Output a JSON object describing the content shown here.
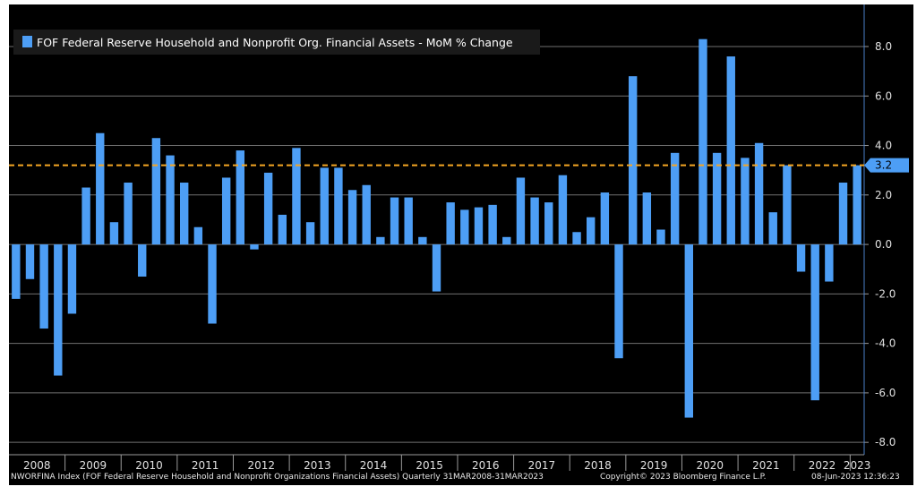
{
  "chart_data": {
    "type": "bar",
    "legend": {
      "label": "FOF Federal Reserve Household and Nonprofit Org. Financial Assets - MoM % Change",
      "placement": "top-left"
    },
    "ylim": [
      -8.5,
      9.7
    ],
    "yticks": [
      8,
      6,
      4,
      2,
      0,
      -2,
      -4,
      -6,
      -8
    ],
    "ytick_labels": [
      "8.0",
      "6.0",
      "4.0",
      "2.0",
      "0.0",
      "-2.0",
      "-4.0",
      "-6.0",
      "-8.0"
    ],
    "years": [
      "2008",
      "2009",
      "2010",
      "2011",
      "2012",
      "2013",
      "2014",
      "2015",
      "2016",
      "2017",
      "2018",
      "2019",
      "2020",
      "2021",
      "2022",
      "2023"
    ],
    "reference_line": {
      "value": 3.2,
      "label": "3.2",
      "color": "#f5a623"
    },
    "bar_color": "#4d9ef5",
    "grid": true,
    "x": [
      "2008-Q1",
      "2008-Q2",
      "2008-Q3",
      "2008-Q4",
      "2009-Q1",
      "2009-Q2",
      "2009-Q3",
      "2009-Q4",
      "2010-Q1",
      "2010-Q2",
      "2010-Q3",
      "2010-Q4",
      "2011-Q1",
      "2011-Q2",
      "2011-Q3",
      "2011-Q4",
      "2012-Q1",
      "2012-Q2",
      "2012-Q3",
      "2012-Q4",
      "2013-Q1",
      "2013-Q2",
      "2013-Q3",
      "2013-Q4",
      "2014-Q1",
      "2014-Q2",
      "2014-Q3",
      "2014-Q4",
      "2015-Q1",
      "2015-Q2",
      "2015-Q3",
      "2015-Q4",
      "2016-Q1",
      "2016-Q2",
      "2016-Q3",
      "2016-Q4",
      "2017-Q1",
      "2017-Q2",
      "2017-Q3",
      "2017-Q4",
      "2018-Q1",
      "2018-Q2",
      "2018-Q3",
      "2018-Q4",
      "2019-Q1",
      "2019-Q2",
      "2019-Q3",
      "2019-Q4",
      "2020-Q1",
      "2020-Q2",
      "2020-Q3",
      "2020-Q4",
      "2021-Q1",
      "2021-Q2",
      "2021-Q3",
      "2021-Q4",
      "2022-Q1",
      "2022-Q2",
      "2022-Q3",
      "2022-Q4",
      "2023-Q1"
    ],
    "values": [
      -2.2,
      -1.4,
      -3.4,
      -5.3,
      -2.8,
      2.3,
      4.5,
      0.9,
      2.5,
      -1.3,
      4.3,
      3.6,
      2.5,
      0.7,
      -3.2,
      2.7,
      3.8,
      -0.2,
      2.9,
      1.2,
      3.9,
      0.9,
      3.1,
      3.1,
      2.2,
      2.4,
      0.3,
      1.9,
      1.9,
      0.3,
      -1.9,
      1.7,
      1.4,
      1.5,
      1.6,
      0.3,
      2.7,
      1.9,
      1.7,
      2.8,
      0.5,
      1.1,
      2.1,
      -4.6,
      6.8,
      2.1,
      0.6,
      3.7,
      -7.0,
      8.3,
      3.7,
      7.6,
      3.5,
      4.1,
      1.3,
      3.2,
      -1.1,
      -6.3,
      -1.5,
      2.5,
      3.2
    ]
  },
  "footer": {
    "index_text": "NWORFINA Index (FOF Federal Reserve Household and Nonprofit Organizations Financial Assets) Quarterly 31MAR2008-31MAR2023",
    "copyright_text": "Copyright© 2023 Bloomberg Finance L.P.",
    "timestamp_text": "08-Jun-2023 12:36:23"
  }
}
